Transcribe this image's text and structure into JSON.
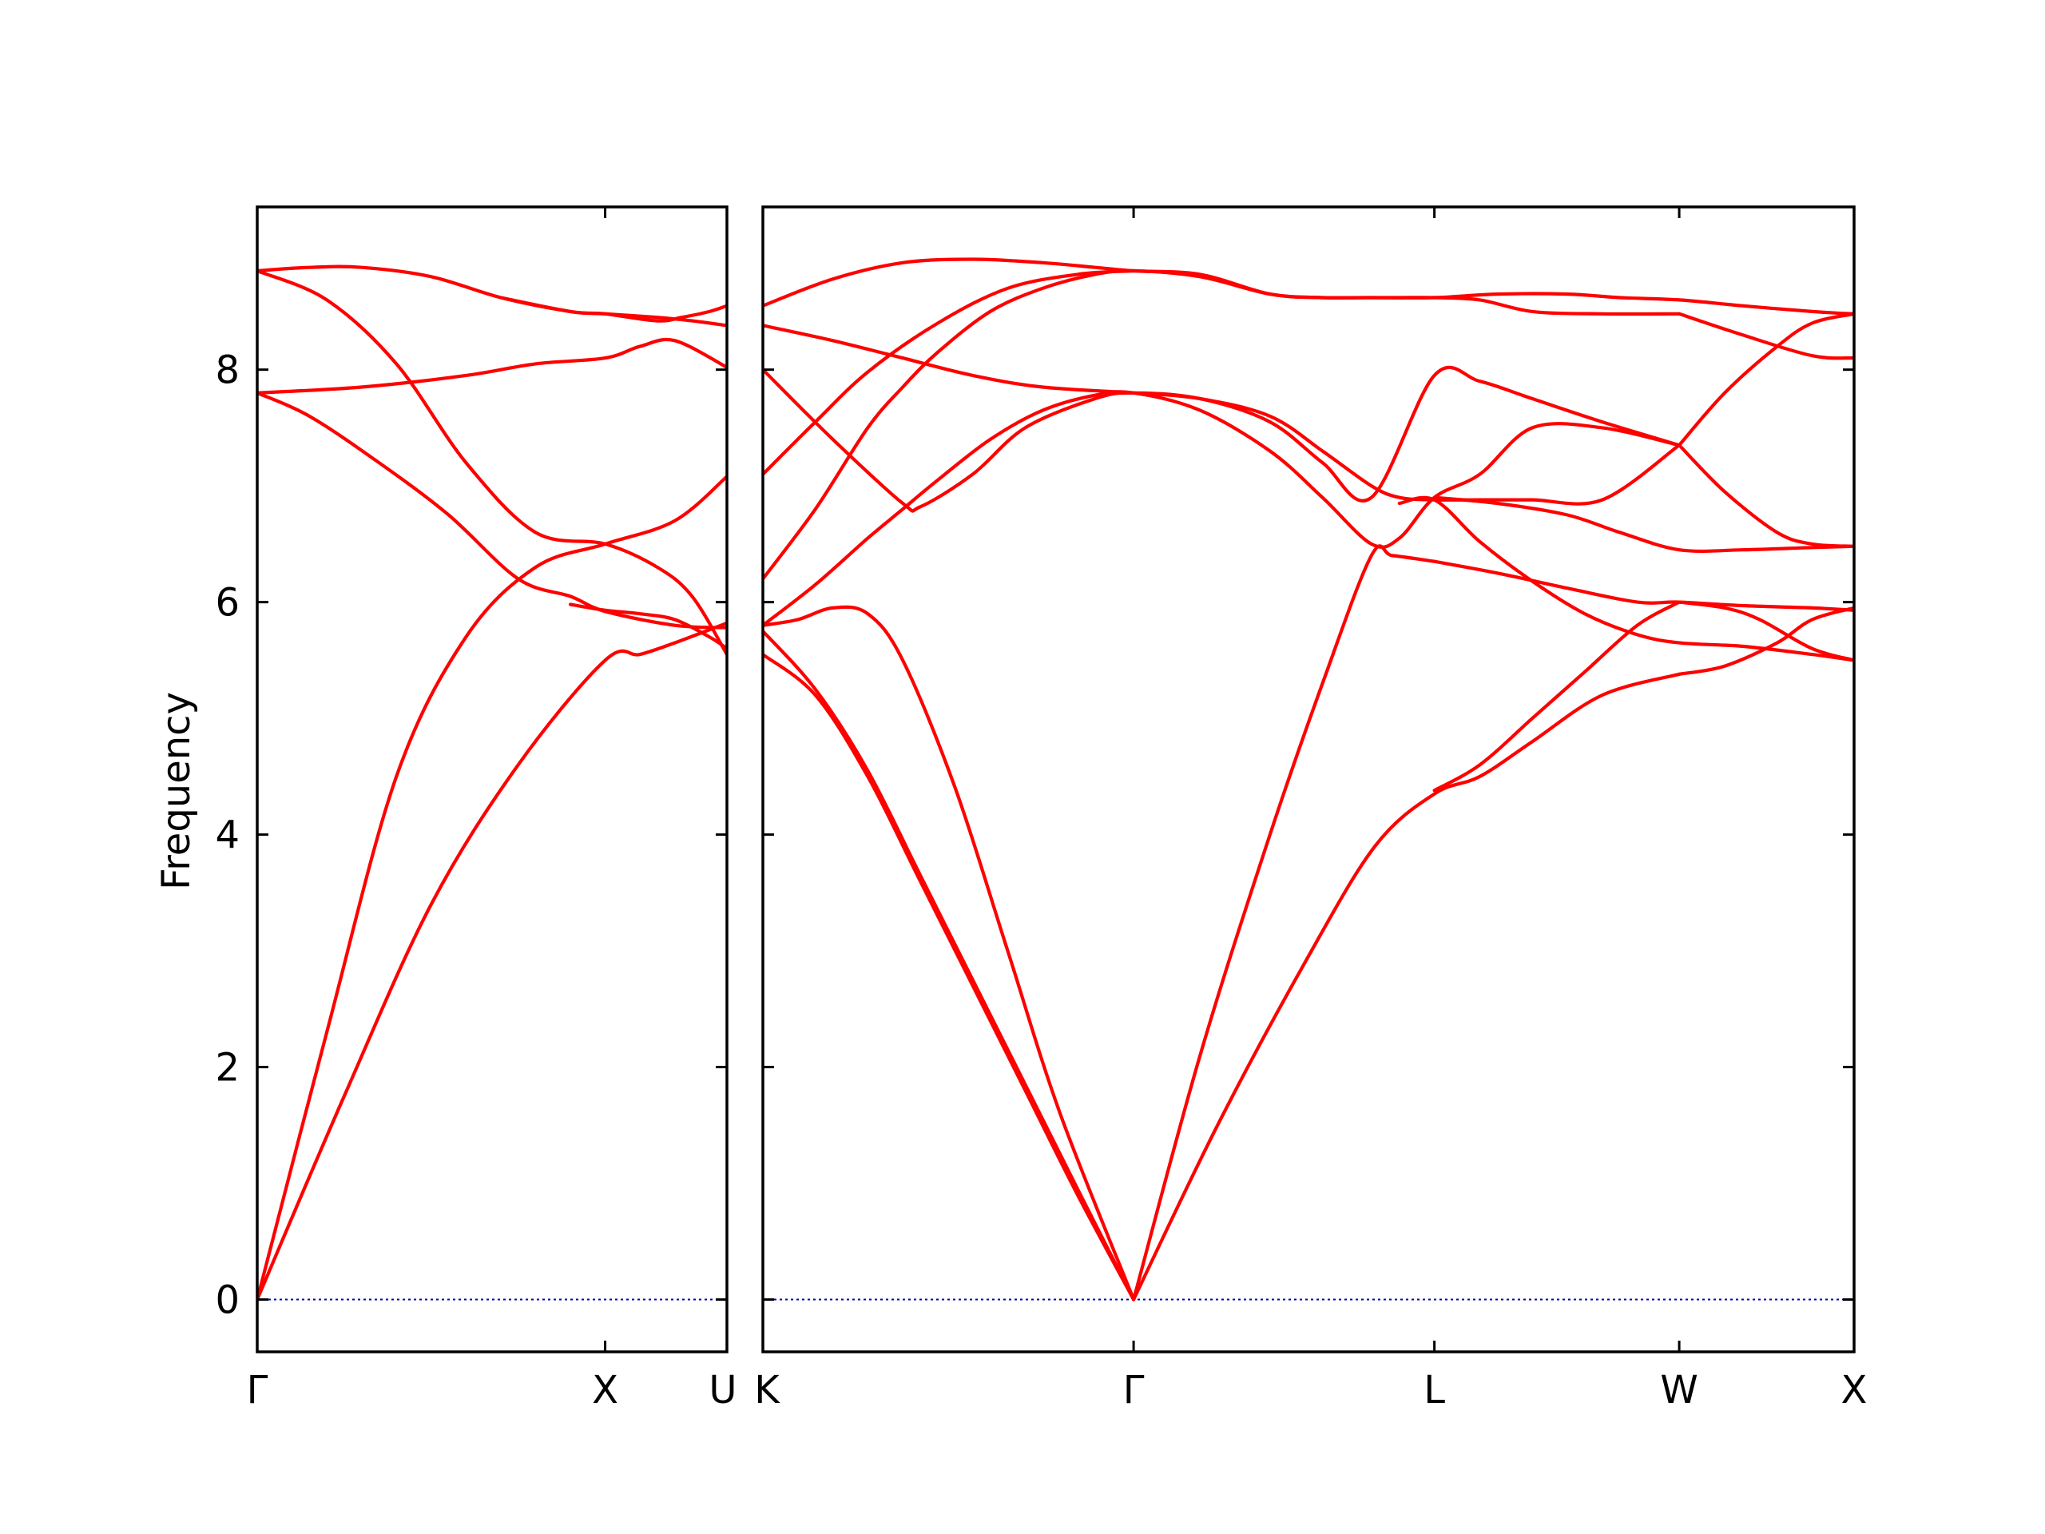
{
  "chart_data": {
    "type": "line",
    "ylabel": "Frequency",
    "ylim": [
      -0.45,
      9.4
    ],
    "yticks": [
      0,
      2,
      4,
      6,
      8
    ],
    "grid": false,
    "line_color": "#ff0000",
    "zero_line_color": "#0000aa",
    "panels": [
      {
        "name": "left",
        "xlim": [
          0,
          1.35
        ],
        "xticks": [
          {
            "x": 0,
            "label": "Γ"
          },
          {
            "x": 1.0,
            "label": "X"
          },
          {
            "x": 1.35,
            "label": "U"
          }
        ],
        "series": [
          {
            "x": [
              0,
              0.2,
              0.4,
              0.6,
              0.8,
              1.0,
              1.2,
              1.35
            ],
            "y": [
              0,
              2.3,
              4.5,
              5.7,
              6.3,
              6.5,
              6.7,
              7.08
            ]
          },
          {
            "x": [
              0,
              0.25,
              0.5,
              0.75,
              1.0,
              1.1,
              1.2,
              1.35
            ],
            "y": [
              0,
              1.75,
              3.4,
              4.6,
              5.5,
              5.55,
              5.65,
              5.82
            ]
          },
          {
            "x": [
              0,
              0.15,
              0.35,
              0.55,
              0.75,
              0.9,
              1.0,
              1.2,
              1.35
            ],
            "y": [
              7.8,
              7.6,
              7.2,
              6.75,
              6.2,
              6.05,
              5.92,
              5.8,
              5.78
            ]
          },
          {
            "x": [
              0,
              0.2,
              0.4,
              0.6,
              0.8,
              1.0,
              1.15,
              1.25,
              1.35
            ],
            "y": [
              8.85,
              8.6,
              8.05,
              7.2,
              6.6,
              6.5,
              6.3,
              6.05,
              5.55
            ]
          },
          {
            "x": [
              0,
              0.3,
              0.6,
              0.8,
              1.0,
              1.1,
              1.2,
              1.35
            ],
            "y": [
              7.8,
              7.85,
              7.95,
              8.05,
              8.1,
              8.2,
              8.25,
              8.02
            ]
          },
          {
            "x": [
              0,
              0.15,
              0.3,
              0.5,
              0.7,
              0.9,
              1.0,
              1.15,
              1.25,
              1.35
            ],
            "y": [
              8.85,
              8.88,
              8.88,
              8.8,
              8.62,
              8.5,
              8.48,
              8.45,
              8.42,
              8.38
            ]
          },
          {
            "x": [
              0.7,
              0.9,
              1.0,
              1.15,
              1.22,
              1.3,
              1.35
            ],
            "y": [
              8.62,
              8.5,
              8.48,
              8.42,
              8.45,
              8.5,
              8.55
            ]
          },
          {
            "x": [
              0.9,
              1.0,
              1.1,
              1.2,
              1.3,
              1.35
            ],
            "y": [
              5.98,
              5.93,
              5.9,
              5.85,
              5.7,
              5.6
            ]
          }
        ]
      },
      {
        "name": "right",
        "xlim": [
          0,
          3.12
        ],
        "xticks": [
          {
            "x": 0,
            "label": "K"
          },
          {
            "x": 1.06,
            "label": "Γ"
          },
          {
            "x": 1.92,
            "label": "L"
          },
          {
            "x": 2.62,
            "label": "W"
          },
          {
            "x": 3.12,
            "label": "X"
          }
        ],
        "series": [
          {
            "x": [
              0,
              0.15,
              0.3,
              0.45,
              0.6,
              0.75,
              0.9,
              1.06
            ],
            "y": [
              5.55,
              5.2,
              4.5,
              3.6,
              2.7,
              1.8,
              0.9,
              0
            ]
          },
          {
            "x": [
              0,
              0.15,
              0.3,
              0.45,
              0.6,
              0.75,
              0.9,
              1.06
            ],
            "y": [
              5.75,
              5.25,
              4.55,
              3.65,
              2.75,
              1.85,
              0.95,
              0
            ]
          },
          {
            "x": [
              0,
              0.1,
              0.2,
              0.3,
              0.4,
              0.55,
              0.7,
              0.85,
              1.06
            ],
            "y": [
              5.8,
              5.85,
              5.95,
              5.9,
              5.5,
              4.4,
              3.0,
              1.6,
              0
            ]
          },
          {
            "x": [
              1.06,
              1.25,
              1.45,
              1.6,
              1.74,
              1.8,
              1.92
            ],
            "y": [
              0,
              2.1,
              4.0,
              5.3,
              6.4,
              6.4,
              6.35
            ]
          },
          {
            "x": [
              1.06,
              1.3,
              1.55,
              1.75,
              1.92,
              2.05,
              2.2,
              2.4,
              2.62
            ],
            "y": [
              0,
              1.5,
              2.9,
              3.9,
              4.35,
              4.5,
              4.8,
              5.2,
              5.38
            ]
          },
          {
            "x": [
              1.92,
              2.05,
              2.2,
              2.35,
              2.5,
              2.62
            ],
            "y": [
              4.38,
              4.6,
              5.0,
              5.4,
              5.8,
              6.0
            ]
          },
          {
            "x": [
              1.92,
              2.1,
              2.3,
              2.5,
              2.62,
              2.8,
              3.0,
              3.12
            ],
            "y": [
              6.35,
              6.25,
              6.12,
              6.0,
              6.0,
              5.97,
              5.95,
              5.93
            ]
          },
          {
            "x": [
              1.82,
              1.92,
              2.05,
              2.2,
              2.35,
              2.5,
              2.62,
              2.8,
              3.0,
              3.12
            ],
            "y": [
              6.85,
              6.88,
              6.52,
              6.18,
              5.9,
              5.72,
              5.65,
              5.62,
              5.55,
              5.5
            ]
          },
          {
            "x": [
              2.62,
              2.75,
              2.9,
              3.0,
              3.12
            ],
            "y": [
              5.38,
              5.45,
              5.65,
              5.85,
              5.95
            ]
          },
          {
            "x": [
              2.62,
              2.75,
              2.85,
              3.0,
              3.12
            ],
            "y": [
              6.0,
              5.95,
              5.85,
              5.6,
              5.5
            ]
          },
          {
            "x": [
              1.92,
              2.1,
              2.3,
              2.45,
              2.62,
              2.8,
              3.0,
              3.12
            ],
            "y": [
              6.9,
              6.85,
              6.75,
              6.6,
              6.45,
              6.45,
              6.47,
              6.48
            ]
          },
          {
            "x": [
              0,
              0.15,
              0.3,
              0.4,
              0.5,
              0.65,
              0.8,
              0.95,
              1.06,
              1.25,
              1.45,
              1.6,
              1.74,
              1.82,
              1.92,
              2.05,
              2.2,
              2.4,
              2.62
            ],
            "y": [
              6.2,
              6.8,
              7.5,
              7.85,
              8.15,
              8.5,
              8.7,
              8.82,
              8.85,
              8.8,
              8.65,
              8.62,
              8.62,
              8.62,
              8.62,
              8.6,
              8.5,
              8.48,
              8.48
            ]
          },
          {
            "x": [
              0,
              0.2,
              0.4,
              0.6,
              0.8,
              0.95,
              1.06,
              1.25,
              1.45,
              1.6,
              1.72,
              1.92,
              2.1,
              2.3,
              2.45,
              2.62,
              2.8,
              3.0,
              3.12
            ],
            "y": [
              8.55,
              8.78,
              8.92,
              8.95,
              8.92,
              8.88,
              8.85,
              8.82,
              8.65,
              8.62,
              8.62,
              8.62,
              8.65,
              8.65,
              8.62,
              8.6,
              8.55,
              8.5,
              8.48
            ]
          },
          {
            "x": [
              0,
              0.2,
              0.4,
              0.6,
              0.8,
              1.06,
              1.25,
              1.45,
              1.6,
              1.74,
              1.82,
              1.92,
              2.05,
              2.2,
              2.4,
              2.62
            ],
            "y": [
              8.38,
              8.25,
              8.1,
              7.95,
              7.85,
              7.8,
              7.75,
              7.6,
              7.3,
              7.0,
              6.9,
              6.88,
              6.88,
              6.88,
              6.88,
              7.35
            ]
          },
          {
            "x": [
              0,
              0.15,
              0.3,
              0.4,
              0.5,
              0.65,
              0.8,
              0.95,
              1.06,
              1.25,
              1.45,
              1.6,
              1.74,
              1.82,
              1.92,
              2.05,
              2.2,
              2.4,
              2.62
            ],
            "y": [
              5.8,
              6.15,
              6.55,
              6.8,
              7.05,
              7.4,
              7.65,
              7.78,
              7.8,
              7.65,
              7.3,
              6.9,
              6.5,
              6.55,
              6.9,
              7.1,
              7.5,
              7.5,
              7.35
            ]
          },
          {
            "x": [
              0,
              0.2,
              0.4,
              0.45,
              0.6,
              0.75,
              0.95,
              1.06,
              1.25,
              1.45,
              1.6,
              1.74,
              1.92,
              2.05,
              2.2,
              2.4,
              2.62
            ],
            "y": [
              8.0,
              7.4,
              6.85,
              6.82,
              7.1,
              7.5,
              7.75,
              7.8,
              7.75,
              7.55,
              7.2,
              6.9,
              7.95,
              7.9,
              7.75,
              7.55,
              7.35
            ]
          },
          {
            "x": [
              0,
              0.15,
              0.3,
              0.5,
              0.7,
              0.9,
              1.06
            ],
            "y": [
              7.1,
              7.55,
              7.98,
              8.4,
              8.7,
              8.82,
              8.85
            ]
          },
          {
            "x": [
              2.62,
              2.75,
              2.9,
              3.0,
              3.12
            ],
            "y": [
              7.35,
              7.8,
              8.2,
              8.4,
              8.48
            ]
          },
          {
            "x": [
              2.62,
              2.75,
              2.9,
              3.0,
              3.12
            ],
            "y": [
              7.35,
              6.95,
              6.6,
              6.5,
              6.48
            ]
          },
          {
            "x": [
              2.62,
              2.8,
              3.0,
              3.12
            ],
            "y": [
              8.48,
              8.3,
              8.12,
              8.1
            ]
          }
        ]
      }
    ]
  }
}
